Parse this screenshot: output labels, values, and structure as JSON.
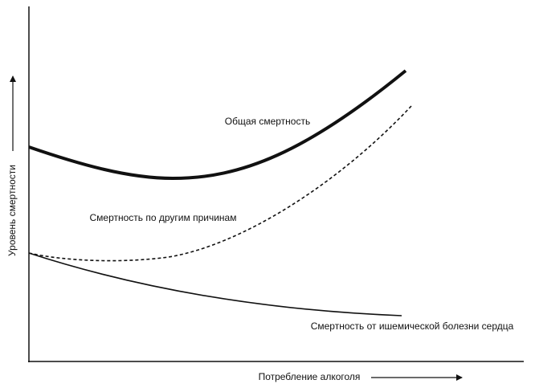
{
  "axes": {
    "y_label": "Уровень смертности",
    "x_label": "Потребление алкоголя"
  },
  "curves": [
    {
      "label": "Общая смертность"
    },
    {
      "label": "Смертность по другим причинам"
    },
    {
      "label": "Смертность от ишемической болезни сердца"
    }
  ]
}
